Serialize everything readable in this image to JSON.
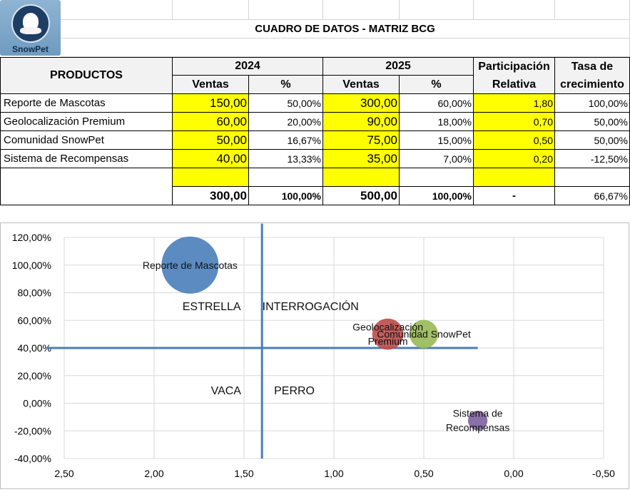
{
  "logo": {
    "name": "SnowPet"
  },
  "sheet": {
    "title": "CUADRO DE DATOS - MATRIZ BCG",
    "headers": {
      "productos": "PRODUCTOS",
      "y2024": "2024",
      "y2025": "2025",
      "ventas_2024": "Ventas",
      "pct_2024": "%",
      "ventas_2025": "Ventas",
      "pct_2025": "%",
      "participacion_1": "Participación",
      "participacion_2": "Relativa",
      "tasa_1": "Tasa de",
      "tasa_2": "crecimiento"
    },
    "rows": [
      {
        "producto": "Reporte de Mascotas",
        "ventas_2024": "150,00",
        "pct_2024": "50,00%",
        "ventas_2025": "300,00",
        "pct_2025": "60,00%",
        "participacion": "1,80",
        "tasa": "100,00%"
      },
      {
        "producto": "Geolocalización Premium",
        "ventas_2024": "60,00",
        "pct_2024": "20,00%",
        "ventas_2025": "90,00",
        "pct_2025": "18,00%",
        "participacion": "0,70",
        "tasa": "50,00%"
      },
      {
        "producto": "Comunidad SnowPet",
        "ventas_2024": "50,00",
        "pct_2024": "16,67%",
        "ventas_2025": "75,00",
        "pct_2025": "15,00%",
        "participacion": "0,50",
        "tasa": "50,00%"
      },
      {
        "producto": "Sistema de Recompensas",
        "ventas_2024": "40,00",
        "pct_2024": "13,33%",
        "ventas_2025": "35,00",
        "pct_2025": "7,00%",
        "participacion": "0,20",
        "tasa": "-12,50%"
      }
    ],
    "totals": {
      "ventas_2024": "300,00",
      "pct_2024": "100,00%",
      "ventas_2025": "500,00",
      "pct_2025": "100,00%",
      "participacion": "-",
      "tasa": "66,67%"
    }
  },
  "chart_data": {
    "type": "scatter",
    "subtype": "bubble",
    "x_reversed": true,
    "xlim": [
      2.5,
      -0.5
    ],
    "ylim": [
      -0.4,
      1.2
    ],
    "x_ticks": [
      2.5,
      2.0,
      1.5,
      1.0,
      0.5,
      0.0,
      -0.5
    ],
    "x_tick_labels": [
      "2,50",
      "2,00",
      "1,50",
      "1,00",
      "0,50",
      "0,00",
      "-0,50"
    ],
    "y_ticks": [
      1.2,
      1.0,
      0.8,
      0.6,
      0.4,
      0.2,
      0.0,
      -0.2,
      -0.4
    ],
    "y_tick_labels": [
      "120,00%",
      "100,00%",
      "80,00%",
      "60,00%",
      "40,00%",
      "20,00%",
      "0,00%",
      "-20,00%",
      "-40,00%"
    ],
    "grid": true,
    "points": [
      {
        "label_lines": [
          "Reporte de Mascotas"
        ],
        "x": 1.8,
        "y": 1.0,
        "size": 300,
        "color": "#4a7ebb"
      },
      {
        "label_lines": [
          "Geolocalización",
          "Premium"
        ],
        "x": 0.7,
        "y": 0.5,
        "size": 90,
        "color": "#be4b48"
      },
      {
        "label_lines": [
          "Comunidad SnowPet"
        ],
        "x": 0.5,
        "y": 0.5,
        "size": 75,
        "color": "#98b954"
      },
      {
        "label_lines": [
          "Sistema de",
          "Recompensas"
        ],
        "x": 0.2,
        "y": -0.125,
        "size": 35,
        "color": "#7d60a0"
      }
    ],
    "divider_color": "#4a7ebb",
    "divider_vertical": {
      "x": 1.4,
      "y_from": -0.4,
      "y_to": 1.3
    },
    "divider_horizontal": {
      "y": 0.4,
      "x_from": 2.6,
      "x_to": 0.2
    },
    "quadrants": [
      {
        "label": "ESTRELLA",
        "x": 1.68,
        "y": 0.7
      },
      {
        "label": "INTERROGACIÓN",
        "x": 1.13,
        "y": 0.7
      },
      {
        "label": "VACA",
        "x": 1.6,
        "y": 0.09
      },
      {
        "label": "PERRO",
        "x": 1.22,
        "y": 0.09
      }
    ]
  }
}
